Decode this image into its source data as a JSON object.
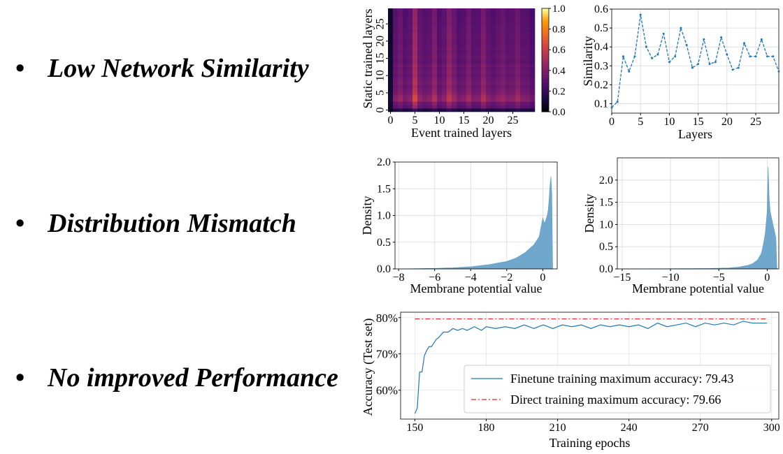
{
  "bullets": [
    {
      "label": "Low Network Similarity"
    },
    {
      "label": "Distribution Mismatch"
    },
    {
      "label": "No improved Performance"
    }
  ],
  "bullet_glyph": "•",
  "chart_data": [
    {
      "type": "heatmap",
      "xlabel": "Event trained layers",
      "ylabel": "Static trained layers",
      "x_ticks": [
        "0",
        "5",
        "10",
        "15",
        "20",
        "25"
      ],
      "y_ticks": [
        "0",
        "5",
        "10",
        "15",
        "20",
        "25"
      ],
      "grid_size": 30,
      "colormap": "inferno",
      "colorbar_range": [
        0.0,
        1.0
      ],
      "colorbar_ticks": [
        "0.0",
        "0.2",
        "0.4",
        "0.6",
        "0.8",
        "1.0"
      ],
      "column_means": [
        0.1,
        0.35,
        0.4,
        0.33,
        0.36,
        0.55,
        0.38,
        0.34,
        0.36,
        0.45,
        0.33,
        0.37,
        0.48,
        0.4,
        0.33,
        0.35,
        0.42,
        0.34,
        0.35,
        0.45,
        0.36,
        0.33,
        0.37,
        0.4,
        0.35,
        0.36,
        0.42,
        0.35,
        0.34,
        0.3
      ],
      "row_scale": [
        0.4,
        0.85,
        0.95,
        1.2,
        1.15,
        1.05,
        1.0,
        0.95,
        1.0,
        0.95,
        0.9,
        0.95,
        0.9,
        0.95,
        0.85,
        0.9,
        0.88,
        0.85,
        0.9,
        0.86,
        0.85,
        0.88,
        0.85,
        0.83,
        0.85,
        0.82,
        0.84,
        0.82,
        0.8,
        0.82
      ]
    },
    {
      "type": "line",
      "xlabel": "Layers",
      "ylabel": "Similarity",
      "x": [
        0,
        1,
        2,
        3,
        4,
        5,
        6,
        7,
        8,
        9,
        10,
        11,
        12,
        13,
        14,
        15,
        16,
        17,
        18,
        19,
        20,
        21,
        22,
        23,
        24,
        25,
        26,
        27,
        28,
        29
      ],
      "values": [
        0.08,
        0.11,
        0.35,
        0.27,
        0.35,
        0.57,
        0.4,
        0.34,
        0.36,
        0.47,
        0.32,
        0.35,
        0.5,
        0.41,
        0.29,
        0.31,
        0.44,
        0.31,
        0.32,
        0.45,
        0.36,
        0.28,
        0.29,
        0.42,
        0.35,
        0.35,
        0.44,
        0.35,
        0.35,
        0.27
      ],
      "xlim": [
        0,
        29
      ],
      "ylim": [
        0.05,
        0.6
      ],
      "x_ticks": [
        0,
        5,
        10,
        15,
        20,
        25
      ],
      "y_ticks": [
        0.1,
        0.2,
        0.3,
        0.4,
        0.5,
        0.6
      ],
      "color": "#1f77b4",
      "grid": true
    },
    {
      "type": "area",
      "xlabel": "Membrane potential value",
      "ylabel": "Density",
      "xlim": [
        -8.2,
        0.8
      ],
      "ylim": [
        0,
        2.0
      ],
      "x_ticks": [
        -8,
        -6,
        -4,
        -2,
        0
      ],
      "x_tick_labels": [
        "−8",
        "−6",
        "−4",
        "−2",
        "0"
      ],
      "y_ticks": [
        0.0,
        0.5,
        1.0,
        1.5,
        2.0
      ],
      "y_tick_labels": [
        "0.0",
        "0.5",
        "1.0",
        "1.5",
        "2.0"
      ],
      "x": [
        -8,
        -6,
        -5,
        -4,
        -3,
        -2,
        -1.5,
        -1,
        -0.5,
        -0.2,
        0,
        0.1,
        0.15,
        0.25,
        0.3,
        0.35,
        0.4,
        0.45,
        0.5,
        0.55
      ],
      "values": [
        0,
        0.01,
        0.02,
        0.04,
        0.08,
        0.14,
        0.2,
        0.3,
        0.45,
        0.6,
        0.95,
        0.85,
        0.9,
        1.0,
        1.1,
        1.3,
        1.55,
        1.73,
        1.4,
        0
      ],
      "color": "#6fa8cc",
      "grid": true
    },
    {
      "type": "area",
      "xlabel": "Membrane potential value",
      "ylabel": "Density",
      "xlim": [
        -15.5,
        1.2
      ],
      "ylim": [
        0,
        2.5
      ],
      "x_ticks": [
        -15,
        -10,
        -5,
        0
      ],
      "x_tick_labels": [
        "−15",
        "−10",
        "−5",
        "0"
      ],
      "y_ticks": [
        0.0,
        0.5,
        1.0,
        1.5,
        2.0
      ],
      "y_tick_labels": [
        "0.0",
        "0.5",
        "1.0",
        "1.5",
        "2.0"
      ],
      "x": [
        -15,
        -10,
        -6,
        -4,
        -3,
        -2,
        -1.5,
        -1,
        -0.6,
        -0.4,
        -0.2,
        0,
        0.1,
        0.2,
        0.3,
        0.4,
        0.5,
        0.7,
        0.9,
        1.0
      ],
      "values": [
        0,
        0.005,
        0.01,
        0.02,
        0.04,
        0.08,
        0.12,
        0.2,
        0.35,
        0.55,
        0.8,
        1.3,
        2.3,
        1.6,
        1.3,
        1.2,
        1.1,
        0.9,
        0.7,
        0
      ],
      "color": "#6fa8cc",
      "grid": true
    },
    {
      "type": "line",
      "xlabel": "Training epochs",
      "ylabel": "Accuracy (Test set)",
      "xlim": [
        144,
        303
      ],
      "ylim": [
        52,
        81.5
      ],
      "x_ticks": [
        150,
        180,
        210,
        240,
        270,
        300
      ],
      "y_ticks": [
        60,
        70,
        80
      ],
      "y_tick_labels": [
        "60%",
        "70%",
        "80%"
      ],
      "grid": true,
      "legend_position": "lower-right",
      "series": [
        {
          "name": "Finetune training maximum accuracy: 79.43",
          "color": "#1f77b4",
          "style": "solid",
          "x": [
            150,
            151,
            152,
            153,
            154,
            155,
            156,
            157,
            158,
            159,
            160,
            162,
            164,
            166,
            168,
            170,
            172,
            175,
            178,
            180,
            184,
            188,
            192,
            196,
            200,
            204,
            208,
            212,
            216,
            220,
            224,
            228,
            232,
            236,
            240,
            244,
            248,
            252,
            256,
            260,
            264,
            268,
            272,
            276,
            280,
            284,
            288,
            292,
            296,
            298
          ],
          "values": [
            53.5,
            55,
            65,
            65,
            69.5,
            71,
            72,
            72,
            73,
            74,
            74.5,
            76,
            76,
            77,
            76.5,
            77,
            76.5,
            77.5,
            76.5,
            77.5,
            77,
            77.5,
            77,
            78,
            77,
            78,
            77,
            78,
            77.5,
            78,
            77,
            78,
            77.5,
            78,
            77.5,
            78,
            77,
            78.5,
            77.5,
            78,
            78.5,
            77.5,
            78.5,
            78,
            78.5,
            78,
            79,
            78.5,
            78.5,
            78.5
          ]
        },
        {
          "name": "Direct training maximum accuracy: 79.66",
          "color": "#e8262a",
          "style": "dashdot",
          "x": [
            150,
            298
          ],
          "values": [
            79.66,
            79.66
          ]
        }
      ]
    }
  ]
}
